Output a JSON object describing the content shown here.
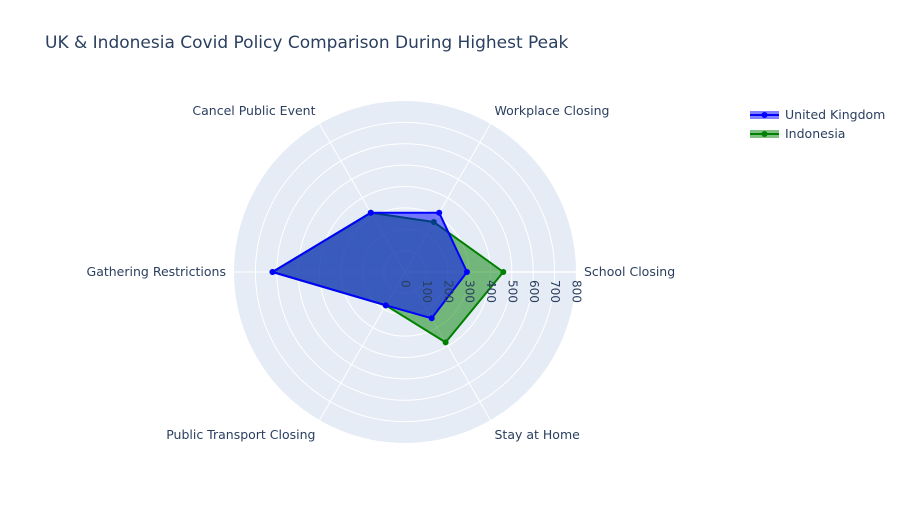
{
  "chart_data": {
    "type": "radar",
    "title": "UK & Indonesia Covid Policy Comparison During Highest Peak",
    "categories": [
      "School Closing",
      "Workplace Closing",
      "Cancel Public Event",
      "Gathering Restrictions",
      "Public Transport Closing",
      "Stay at Home"
    ],
    "radial_axis": {
      "range": [
        0,
        800
      ],
      "ticks": [
        0,
        100,
        200,
        300,
        400,
        500,
        600,
        700,
        800
      ]
    },
    "series": [
      {
        "name": "United Kingdom",
        "color": "#0000ff",
        "values": [
          290,
          320,
          320,
          620,
          180,
          250
        ]
      },
      {
        "name": "Indonesia",
        "color": "#008000",
        "values": [
          460,
          270,
          320,
          620,
          180,
          380
        ]
      }
    ],
    "legend_position": "top-right",
    "grid": true
  }
}
